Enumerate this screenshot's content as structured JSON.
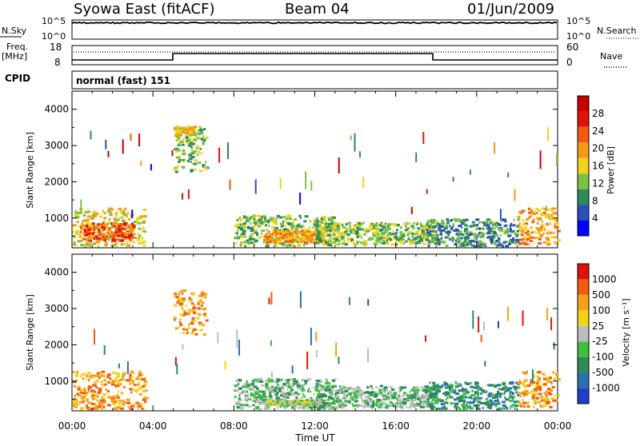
{
  "header": {
    "title": "Syowa East (fitACF)",
    "beam": "Beam 04",
    "date": "01/Jun/2009"
  },
  "panels": {
    "nsky": {
      "left_label": "N.Sky",
      "right_label": "N.Search",
      "left_ticks": [
        "10^5",
        "10^0"
      ],
      "right_ticks": [
        "10^5",
        "10^0"
      ],
      "noise_level": 0.85
    },
    "freq": {
      "left_label_line1": "Freq.",
      "left_label_line2": "[MHz]",
      "right_label": "Nave",
      "left_ticks": [
        "18",
        "8"
      ],
      "right_ticks": [
        "60",
        "0"
      ]
    },
    "cpid": {
      "label": "CPID",
      "mode": "normal (fast) 151"
    }
  },
  "chart_data": [
    {
      "type": "heatmap",
      "name": "power",
      "ylabel": "Slant Range [km]",
      "xlabel": "Time UT",
      "x_ticks": [
        "00:00",
        "04:00",
        "08:00",
        "12:00",
        "16:00",
        "20:00",
        "00:00"
      ],
      "y_ticks": [
        "1000",
        "2000",
        "3000",
        "4000"
      ],
      "ylim": [
        180,
        4500
      ],
      "xlim_hours": [
        0,
        24
      ],
      "colorbar": {
        "label": "Power [dB]",
        "ticks": [
          "28",
          "24",
          "20",
          "16",
          "12",
          "8",
          "4"
        ],
        "colors": [
          "#0000ff",
          "#2a4fb8",
          "#2e8b57",
          "#7cc242",
          "#f2d21b",
          "#f59a16",
          "#f25c0e",
          "#e0120c",
          "#c80000"
        ]
      },
      "scatter_regions": [
        {
          "t0": 0.0,
          "t1": 3.6,
          "r0": 250,
          "r1": 1300,
          "level": 4
        },
        {
          "t0": 0.3,
          "t1": 3.0,
          "r0": 400,
          "r1": 900,
          "level": 6
        },
        {
          "t0": 5.0,
          "t1": 6.6,
          "r0": 2300,
          "r1": 3550,
          "level": 3
        },
        {
          "t0": 5.0,
          "t1": 6.0,
          "r0": 3300,
          "r1": 3550,
          "level": 4
        },
        {
          "t0": 8.0,
          "t1": 13.0,
          "r0": 250,
          "r1": 1100,
          "level": 3
        },
        {
          "t0": 9.5,
          "t1": 12.5,
          "r0": 350,
          "r1": 700,
          "level": 5
        },
        {
          "t0": 12.0,
          "t1": 18.0,
          "r0": 300,
          "r1": 900,
          "level": 3
        },
        {
          "t0": 17.5,
          "t1": 22.0,
          "r0": 250,
          "r1": 1000,
          "level": 2
        },
        {
          "t0": 22.0,
          "t1": 24.0,
          "r0": 300,
          "r1": 1300,
          "level": 5
        }
      ]
    },
    {
      "type": "heatmap",
      "name": "velocity",
      "ylabel": "Slant Range [km]",
      "xlabel": "Time UT",
      "x_ticks": [
        "00:00",
        "04:00",
        "08:00",
        "12:00",
        "16:00",
        "20:00",
        "00:00"
      ],
      "y_ticks": [
        "1000",
        "2000",
        "3000",
        "4000"
      ],
      "ylim": [
        180,
        4500
      ],
      "xlim_hours": [
        0,
        24
      ],
      "colorbar": {
        "label": "Velocity [m s⁻¹]",
        "ticks": [
          "1000",
          "500",
          "100",
          "25",
          "-25",
          "-100",
          "-500",
          "-1000"
        ],
        "colors": [
          "#1f3fc8",
          "#2a6fb0",
          "#2e8b57",
          "#3fbf3f",
          "#bdbdbd",
          "#f2d21b",
          "#f5a116",
          "#f25c0e",
          "#e0120c"
        ]
      },
      "scatter_regions": [
        {
          "t0": 0.0,
          "t1": 3.6,
          "r0": 250,
          "r1": 1300,
          "level": 6
        },
        {
          "t0": 5.0,
          "t1": 6.6,
          "r0": 2300,
          "r1": 3550,
          "level": 6
        },
        {
          "t0": 8.0,
          "t1": 13.0,
          "r0": 250,
          "r1": 1100,
          "level": 3
        },
        {
          "t0": 9.5,
          "t1": 12.5,
          "r0": 350,
          "r1": 500,
          "level": 4
        },
        {
          "t0": 12.0,
          "t1": 18.0,
          "r0": 300,
          "r1": 900,
          "level": 3
        },
        {
          "t0": 17.5,
          "t1": 22.0,
          "r0": 250,
          "r1": 1000,
          "level": 2
        },
        {
          "t0": 22.0,
          "t1": 24.0,
          "r0": 300,
          "r1": 1300,
          "level": 6
        }
      ]
    }
  ]
}
